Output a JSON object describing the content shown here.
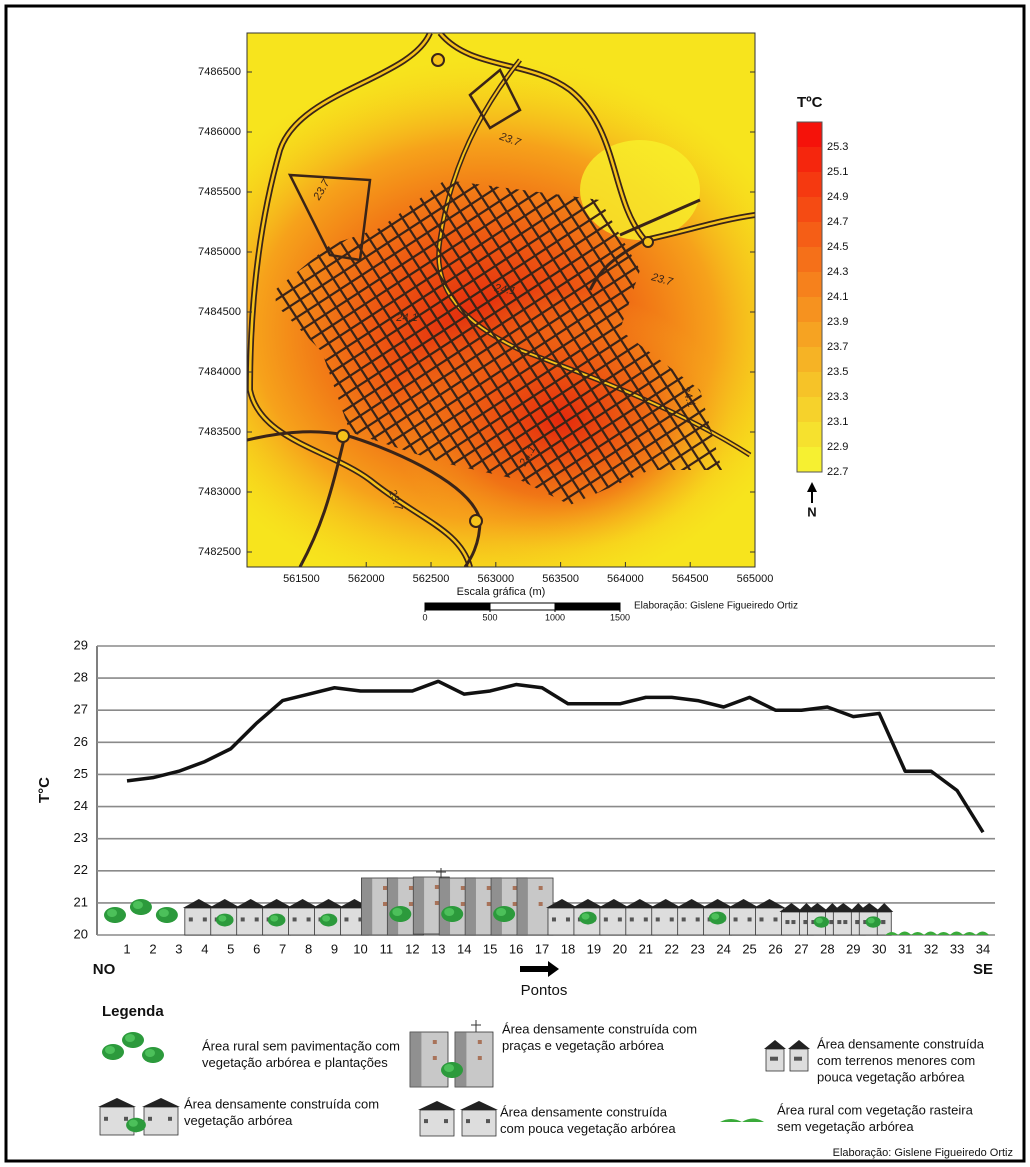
{
  "chart_data": [
    {
      "type": "map",
      "xlabel": "Escala gráfica (m)",
      "xlim": [
        561080,
        565000
      ],
      "xticks": [
        561500,
        562000,
        562500,
        563000,
        563500,
        564000,
        564500,
        565000
      ],
      "ylim": [
        7482375,
        7486825
      ],
      "yticks": [
        7482500,
        7483000,
        7483500,
        7484000,
        7484500,
        7485000,
        7485500,
        7486000,
        7486500
      ],
      "contour_labels": [
        "23.7",
        "23.7",
        "23.7",
        "24.1",
        "24.1",
        "24.1",
        "24.1",
        "23.7"
      ],
      "colorbar": {
        "title": "TºC",
        "ticks": [
          25.3,
          25.1,
          24.9,
          24.7,
          24.5,
          24.3,
          24.1,
          23.9,
          23.7,
          23.5,
          23.3,
          23.1,
          22.9,
          22.7
        ]
      },
      "north": "N",
      "scale_bar": {
        "ticks": [
          0,
          500,
          1000,
          1500
        ]
      },
      "credit": "Elaboração: Gislene Figueiredo Ortiz"
    },
    {
      "type": "line",
      "ylabel": "T°C",
      "xlabel": "Pontos",
      "categories": [
        1,
        2,
        3,
        4,
        5,
        6,
        7,
        8,
        9,
        10,
        11,
        12,
        13,
        14,
        15,
        16,
        17,
        18,
        19,
        20,
        21,
        22,
        23,
        24,
        25,
        26,
        27,
        28,
        29,
        30,
        31,
        32,
        33,
        34
      ],
      "values": [
        24.8,
        24.9,
        25.1,
        25.4,
        25.8,
        26.6,
        27.3,
        27.5,
        27.7,
        27.6,
        27.6,
        27.6,
        27.9,
        27.5,
        27.6,
        27.8,
        27.7,
        27.2,
        27.2,
        27.2,
        27.4,
        27.4,
        27.3,
        27.1,
        27.4,
        27.0,
        27.0,
        27.1,
        26.8,
        26.9,
        25.1,
        25.1,
        24.5,
        23.2
      ],
      "color": "#111111",
      "ylim": [
        20,
        29
      ],
      "yticks": [
        20,
        21,
        22,
        23,
        24,
        25,
        26,
        27,
        28,
        29
      ],
      "grid": true,
      "start_label": "NO",
      "end_label": "SE"
    }
  ],
  "legend": {
    "title": "Legenda",
    "items": [
      {
        "lines": [
          "Área rural sem pavimentação com",
          "vegetação arbórea e plantações"
        ]
      },
      {
        "lines": [
          "Área densamente construída com",
          "praças e vegetação arbórea"
        ]
      },
      {
        "lines": [
          "Área densamente construída",
          "com terrenos menores com",
          "pouca vegetação arbórea"
        ]
      },
      {
        "lines": [
          "Área densamente construída com",
          "vegetação arbórea"
        ]
      },
      {
        "lines": [
          "Área densamente construída",
          "com pouca vegetação arbórea"
        ]
      },
      {
        "lines": [
          "Área rural com vegetação rasteira",
          "sem vegetação arbórea"
        ]
      }
    ]
  },
  "credit": "Elaboração: Gislene Figueiredo Ortiz"
}
